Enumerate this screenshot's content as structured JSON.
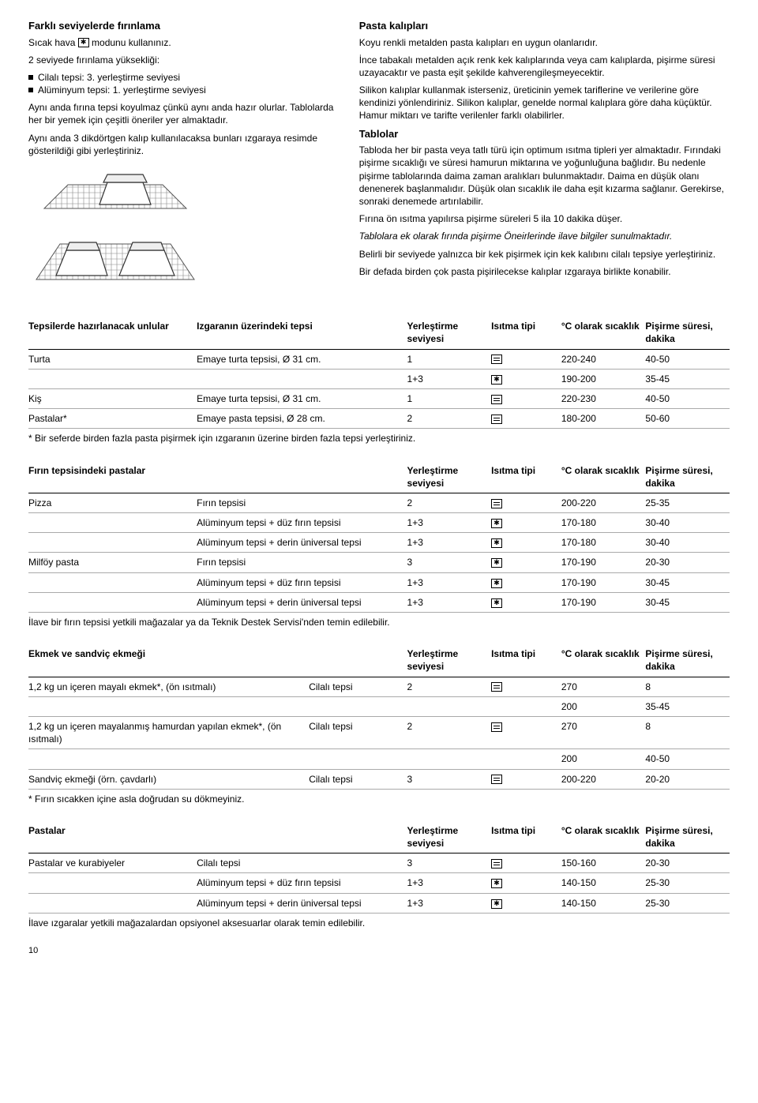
{
  "left": {
    "h1": "Farklı seviyelerde fırınlama",
    "p1a": "Sıcak hava ",
    "p1b": " modunu kullanınız.",
    "p2": "2 seviyede fırınlama yüksekliği:",
    "b1": "Cilalı tepsi: 3. yerleştirme seviyesi",
    "b2": "Alüminyum tepsi: 1. yerleştirme seviyesi",
    "p3": "Aynı anda fırına tepsi koyulmaz çünkü aynı anda hazır olurlar. Tablolarda her bir yemek için çeşitli öneriler yer almaktadır.",
    "p4": "Aynı anda 3 dikdörtgen kalıp kullanılacaksa bunları ızgaraya resimde gösterildiği gibi yerleştiriniz."
  },
  "right": {
    "h1": "Pasta kalıpları",
    "p1": "Koyu renkli metalden pasta kalıpları en uygun olanlarıdır.",
    "p2": "İnce tabakalı metalden açık renk kek kalıplarında veya cam kalıplarda, pişirme süresi uzayacaktır ve pasta eşit şekilde kahverengileşmeyecektir.",
    "p3": "Silikon kalıplar kullanmak isterseniz, üreticinin yemek tariflerine ve verilerine göre kendinizi yönlendiriniz. Silikon kalıplar, genelde normal kalıplara göre daha küçüktür. Hamur miktarı ve tarifte verilenler farklı olabilirler.",
    "h2": "Tablolar",
    "p4": "Tabloda her bir pasta veya tatlı türü için optimum ısıtma tipleri yer almaktadır. Fırındaki pişirme sıcaklığı ve süresi hamurun miktarına ve yoğunluğuna bağlıdır. Bu nedenle pişirme tablolarında daima zaman aralıkları bulunmaktadır. Daima en düşük olanı denenerek başlanmalıdır. Düşük olan sıcaklık ile daha eşit kızarma sağlanır. Gerekirse, sonraki denemede artırılabilir.",
    "p5": "Fırına ön ısıtma yapılırsa pişirme süreleri 5 ila 10 dakika düşer.",
    "p6": "Tablolara ek olarak fırında pişirme Öneirlerinde ilave bilgiler sunulmaktadır.",
    "p7": "Belirli bir seviyede yalnızca bir kek pişirmek için kek kalıbını cilalı tepsiye yerleştiriniz.",
    "p8": "Bir defada birden çok pasta pişirilecekse kalıplar ızgaraya birlikte konabilir."
  },
  "tables": {
    "cols_lvl": "Yerleştirme seviyesi",
    "cols_heat": "Isıtma tipi",
    "cols_temp": "°C olarak sıcaklık",
    "cols_time": "Pişirme süresi, dakika",
    "t1": {
      "head0": "Tepsilerde hazırlanacak unlular",
      "head1": "Izgaranın üzerindeki tepsi",
      "rows": [
        {
          "c0": "Turta",
          "c1": "Emaye turta tepsisi, Ø 31 cm.",
          "lvl": "1",
          "heat": "conv",
          "temp": "220-240",
          "time": "40-50"
        },
        {
          "c0": "",
          "c1": "",
          "lvl": "1+3",
          "heat": "fan",
          "temp": "190-200",
          "time": "35-45"
        },
        {
          "c0": "Kiş",
          "c1": "Emaye turta tepsisi, Ø 31 cm.",
          "lvl": "1",
          "heat": "conv",
          "temp": "220-230",
          "time": "40-50"
        },
        {
          "c0": "Pastalar*",
          "c1": "Emaye pasta tepsisi, Ø 28 cm.",
          "lvl": "2",
          "heat": "conv",
          "temp": "180-200",
          "time": "50-60"
        }
      ],
      "foot": "* Bir seferde birden fazla pasta pişirmek için ızgaranın üzerine birden fazla tepsi yerleştiriniz."
    },
    "t2": {
      "head0": "Fırın tepsisindeki pastalar",
      "rows": [
        {
          "c0": "Pizza",
          "c1": "Fırın tepsisi",
          "lvl": "2",
          "heat": "conv",
          "temp": "200-220",
          "time": "25-35"
        },
        {
          "c0": "",
          "c1": "Alüminyum tepsi + düz fırın tepsisi",
          "lvl": "1+3",
          "heat": "fan",
          "temp": "170-180",
          "time": "30-40"
        },
        {
          "c0": "",
          "c1": "Alüminyum tepsi + derin üniversal tepsi",
          "lvl": "1+3",
          "heat": "fan",
          "temp": "170-180",
          "time": "30-40"
        },
        {
          "c0": "Milföy pasta",
          "c1": "Fırın tepsisi",
          "lvl": "3",
          "heat": "fan",
          "temp": "170-190",
          "time": "20-30"
        },
        {
          "c0": "",
          "c1": "Alüminyum tepsi + düz fırın tepsisi",
          "lvl": "1+3",
          "heat": "fan",
          "temp": "170-190",
          "time": "30-45"
        },
        {
          "c0": "",
          "c1": "Alüminyum tepsi + derin üniversal tepsi",
          "lvl": "1+3",
          "heat": "fan",
          "temp": "170-190",
          "time": "30-45"
        }
      ],
      "foot": "İlave bir fırın tepsisi yetkili mağazalar ya da Teknik Destek Servisi'nden temin edilebilir."
    },
    "t3": {
      "head0": "Ekmek ve sandviç ekmeği",
      "rows": [
        {
          "c0": "1,2 kg un içeren mayalı ekmek*, (ön ısıtmalı)",
          "c1": "Cilalı tepsi",
          "lvl": "2",
          "heat": "conv",
          "temp": "270",
          "time": "8"
        },
        {
          "c0": "",
          "c1": "",
          "lvl": "",
          "heat": "",
          "temp": "200",
          "time": "35-45"
        },
        {
          "c0": "1,2 kg un içeren mayalanmış hamurdan yapılan ekmek*, (ön ısıtmalı)",
          "c1": "Cilalı tepsi",
          "lvl": "2",
          "heat": "conv",
          "temp": "270",
          "time": "8"
        },
        {
          "c0": "",
          "c1": "",
          "lvl": "",
          "heat": "",
          "temp": "200",
          "time": "40-50"
        },
        {
          "c0": "Sandviç ekmeği (örn. çavdarlı)",
          "c1": "Cilalı tepsi",
          "lvl": "3",
          "heat": "conv",
          "temp": "200-220",
          "time": "20-20"
        }
      ],
      "foot": "* Fırın sıcakken içine asla doğrudan su dökmeyiniz."
    },
    "t4": {
      "head0": "Pastalar",
      "rows": [
        {
          "c0": "Pastalar ve kurabiyeler",
          "c1": "Cilalı tepsi",
          "lvl": "3",
          "heat": "conv",
          "temp": "150-160",
          "time": "20-30"
        },
        {
          "c0": "",
          "c1": "Alüminyum tepsi + düz fırın tepsisi",
          "lvl": "1+3",
          "heat": "fan",
          "temp": "140-150",
          "time": "25-30"
        },
        {
          "c0": "",
          "c1": "Alüminyum tepsi + derin üniversal tepsi",
          "lvl": "1+3",
          "heat": "fan",
          "temp": "140-150",
          "time": "25-30"
        }
      ],
      "foot": "İlave ızgaralar yetkili mağazalardan opsiyonel aksesuarlar olarak temin edilebilir."
    }
  },
  "pagenum": "10"
}
